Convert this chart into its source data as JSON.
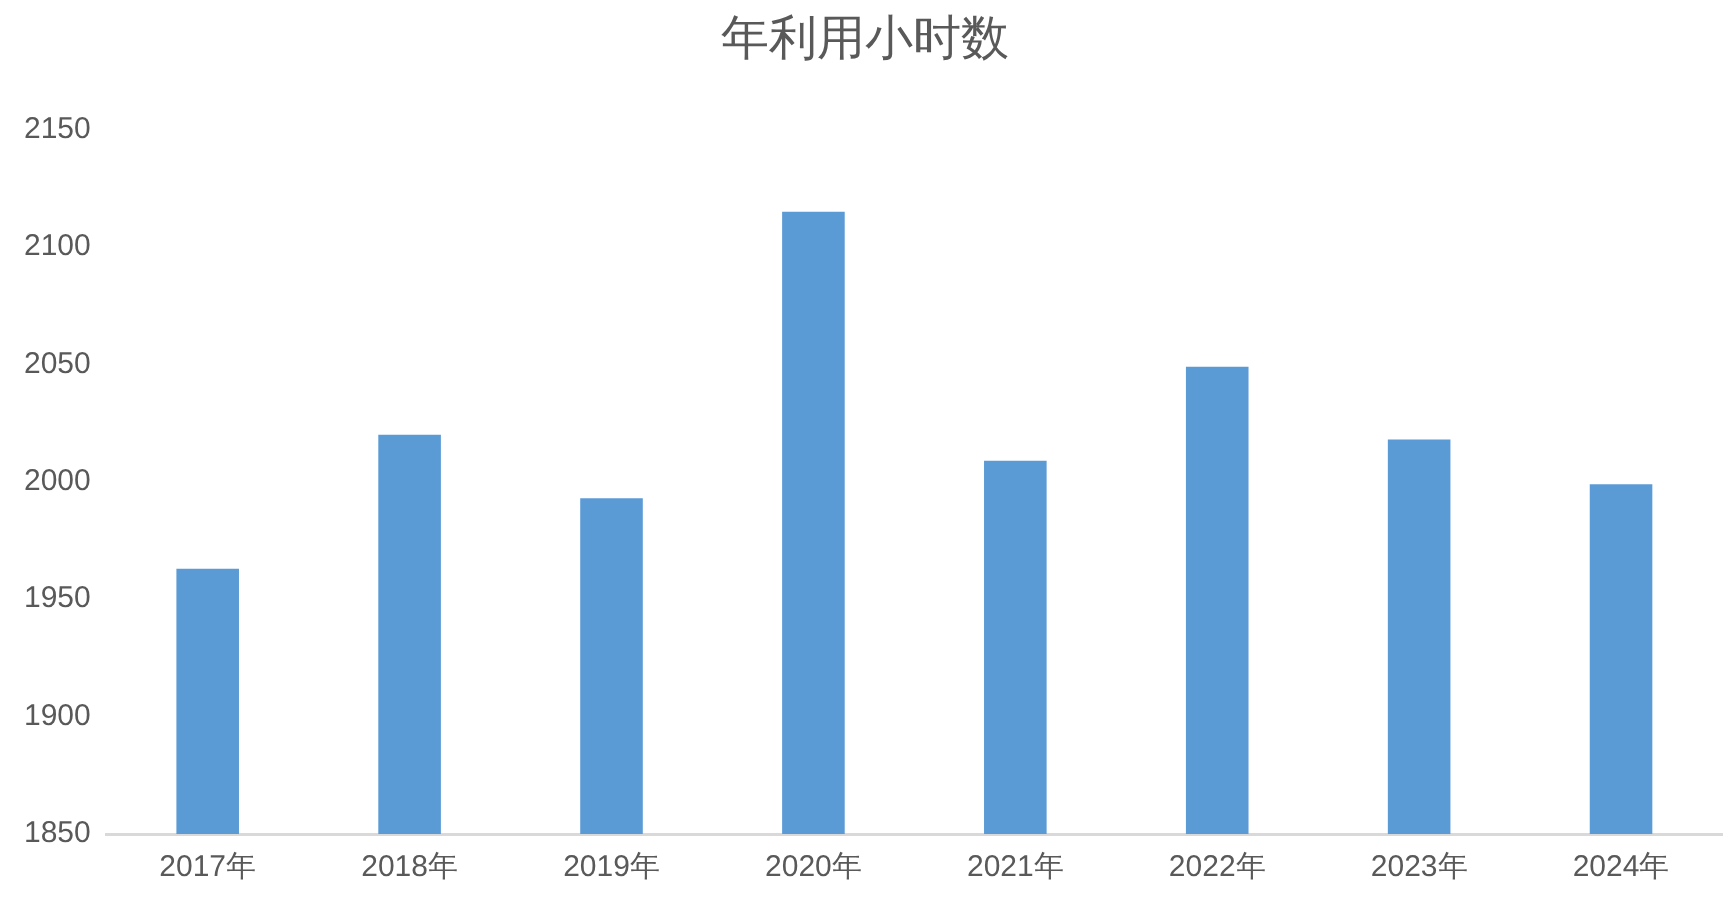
{
  "chart_data": {
    "type": "bar",
    "title": "年利用小时数",
    "categories": [
      "2017年",
      "2018年",
      "2019年",
      "2020年",
      "2021年",
      "2022年",
      "2023年",
      "2024年"
    ],
    "values": [
      1963,
      2020,
      1993,
      2115,
      2009,
      2049,
      2018,
      1999
    ],
    "color": "#5b9bd5",
    "ylim": [
      1850,
      2150
    ],
    "yticks": [
      1850,
      1900,
      1950,
      2000,
      2050,
      2100,
      2150
    ],
    "grid": false,
    "legend": false
  }
}
